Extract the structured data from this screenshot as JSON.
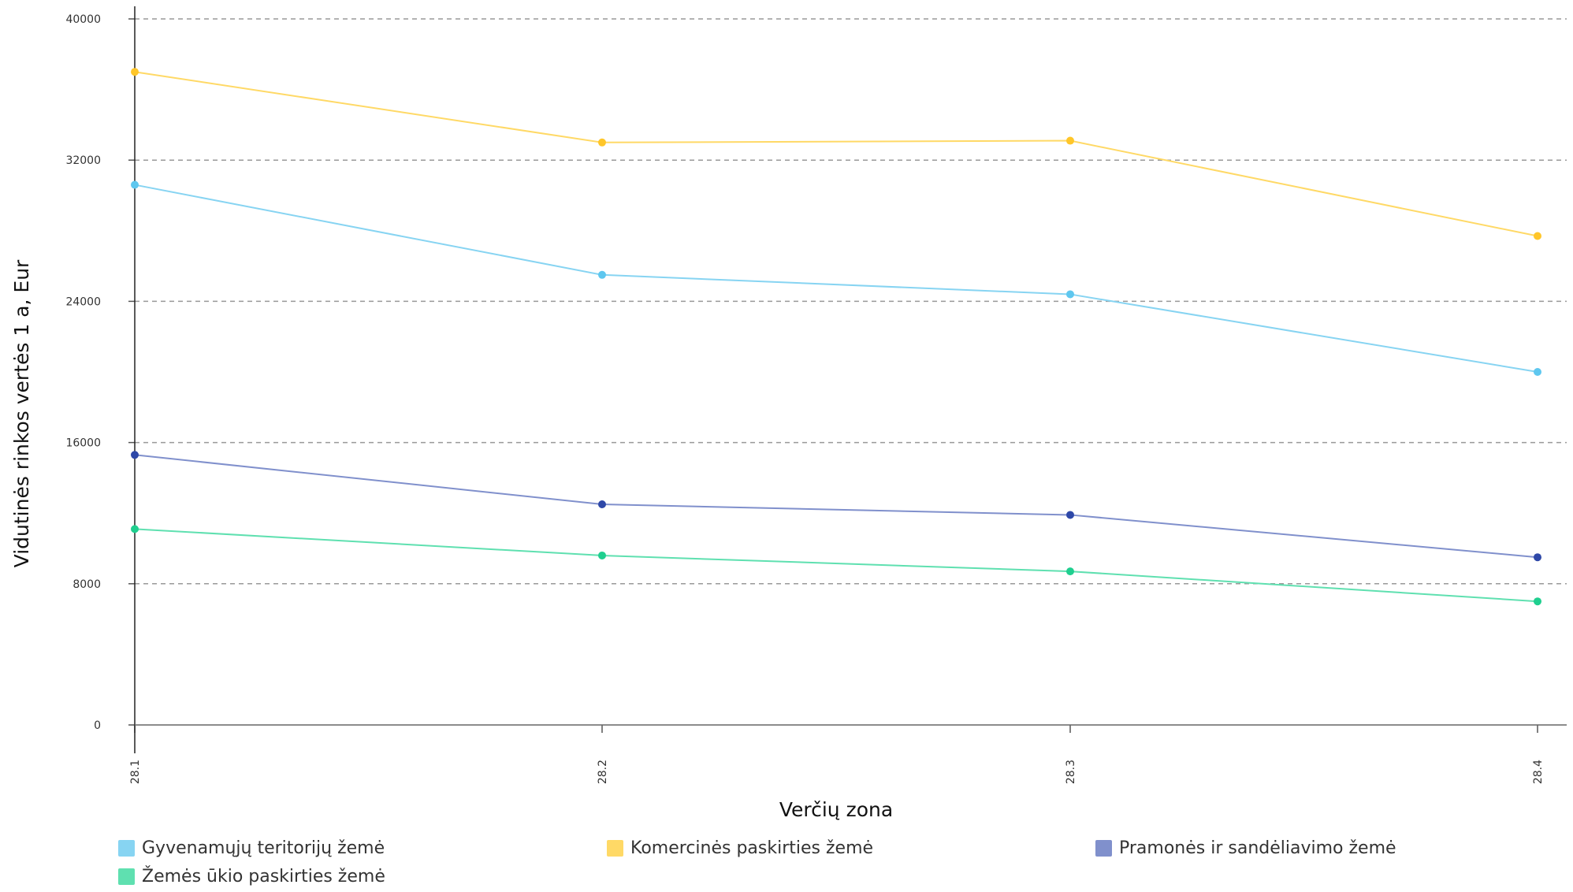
{
  "chart_data": {
    "type": "line",
    "title": "",
    "xlabel": "Verčių zona",
    "ylabel": "Vidutinės rinkos vertės 1 a, Eur",
    "categories": [
      "28.1",
      "28.2",
      "28.3",
      "28.4"
    ],
    "yticks": [
      "0",
      "8000",
      "16000",
      "24000",
      "32000",
      "40000"
    ],
    "ylim": [
      0,
      40000
    ],
    "grid": "horizontal dashed",
    "legend_position": "bottom",
    "series": [
      {
        "name": "Gyvenamųjų teritorijų žemė",
        "color": "#87d4f2",
        "marker": "#5ec7ef",
        "values": [
          30600,
          25500,
          24400,
          20000
        ]
      },
      {
        "name": "Komercinės paskirties žemė",
        "color": "#ffd966",
        "marker": "#ffc629",
        "values": [
          37000,
          33000,
          33100,
          27700
        ]
      },
      {
        "name": "Pramonės ir sandėliavimo žemė",
        "color": "#8090cc",
        "marker": "#2e48a8",
        "values": [
          15300,
          12500,
          11900,
          9500
        ]
      },
      {
        "name": "Žemės ūkio paskirties žemė",
        "color": "#5fe0b0",
        "marker": "#1fcf8f",
        "values": [
          11100,
          9600,
          8700,
          7000
        ]
      }
    ]
  }
}
